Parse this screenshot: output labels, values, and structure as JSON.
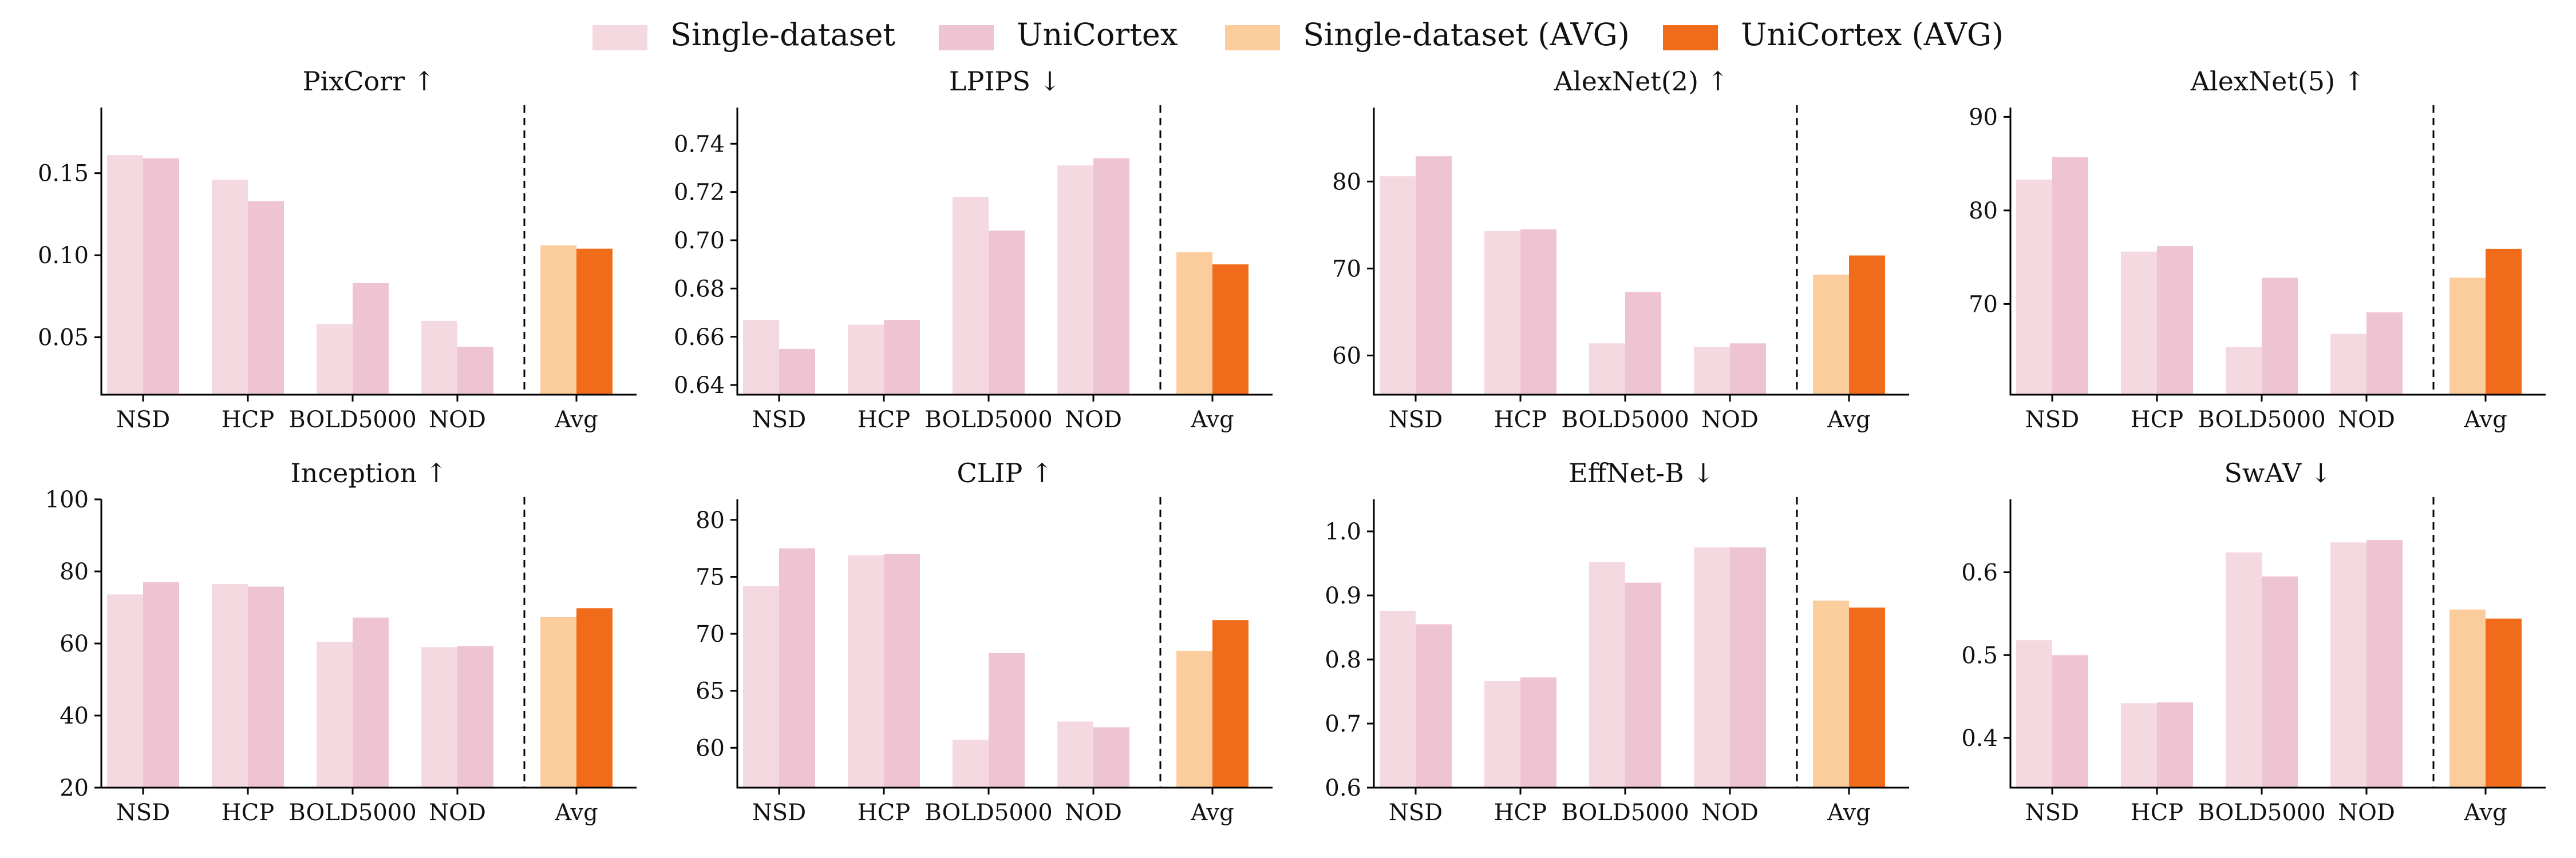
{
  "legend": {
    "items": [
      {
        "label": "Single-dataset",
        "color": "#f5d9e0"
      },
      {
        "label": "UniCortex",
        "color": "#efc4d2"
      },
      {
        "label": "Single-dataset (AVG)",
        "color": "#fbcd9c"
      },
      {
        "label": "UniCortex (AVG)",
        "color": "#f06c1b"
      }
    ]
  },
  "chart_data": [
    {
      "type": "bar",
      "title": "PixCorr ↑",
      "categories": [
        "NSD",
        "HCP",
        "BOLD5000",
        "NOD",
        "Avg"
      ],
      "series": [
        {
          "name": "Single-dataset",
          "values": [
            0.161,
            0.146,
            0.058,
            0.06,
            null
          ]
        },
        {
          "name": "UniCortex",
          "values": [
            0.159,
            0.133,
            0.083,
            0.044,
            null
          ]
        },
        {
          "name": "Single-dataset (AVG)",
          "values": [
            null,
            null,
            null,
            null,
            0.106
          ]
        },
        {
          "name": "UniCortex (AVG)",
          "values": [
            null,
            null,
            null,
            null,
            0.104
          ]
        }
      ],
      "ylim": [
        0.015,
        0.19
      ],
      "yticks": [
        0.05,
        0.1,
        0.15
      ],
      "ytick_labels": [
        "0.05",
        "0.10",
        "0.15"
      ]
    },
    {
      "type": "bar",
      "title": "LPIPS ↓",
      "categories": [
        "NSD",
        "HCP",
        "BOLD5000",
        "NOD",
        "Avg"
      ],
      "series": [
        {
          "name": "Single-dataset",
          "values": [
            0.667,
            0.665,
            0.718,
            0.731,
            null
          ]
        },
        {
          "name": "UniCortex",
          "values": [
            0.655,
            0.667,
            0.704,
            0.734,
            null
          ]
        },
        {
          "name": "Single-dataset (AVG)",
          "values": [
            null,
            null,
            null,
            null,
            0.695
          ]
        },
        {
          "name": "UniCortex (AVG)",
          "values": [
            null,
            null,
            null,
            null,
            0.69
          ]
        }
      ],
      "ylim": [
        0.636,
        0.755
      ],
      "yticks": [
        0.64,
        0.66,
        0.68,
        0.7,
        0.72,
        0.74
      ],
      "ytick_labels": [
        "0.64",
        "0.66",
        "0.68",
        "0.70",
        "0.72",
        "0.74"
      ]
    },
    {
      "type": "bar",
      "title": "AlexNet(2) ↑",
      "categories": [
        "NSD",
        "HCP",
        "BOLD5000",
        "NOD",
        "Avg"
      ],
      "series": [
        {
          "name": "Single-dataset",
          "values": [
            80.6,
            74.3,
            61.4,
            61.0,
            null
          ]
        },
        {
          "name": "UniCortex",
          "values": [
            82.9,
            74.5,
            67.3,
            61.4,
            null
          ]
        },
        {
          "name": "Single-dataset (AVG)",
          "values": [
            null,
            null,
            null,
            null,
            69.3
          ]
        },
        {
          "name": "UniCortex (AVG)",
          "values": [
            null,
            null,
            null,
            null,
            71.5
          ]
        }
      ],
      "ylim": [
        55.5,
        88.5
      ],
      "yticks": [
        60,
        70,
        80
      ],
      "ytick_labels": [
        "60",
        "70",
        "80"
      ]
    },
    {
      "type": "bar",
      "title": "AlexNet(5) ↑",
      "categories": [
        "NSD",
        "HCP",
        "BOLD5000",
        "NOD",
        "Avg"
      ],
      "series": [
        {
          "name": "Single-dataset",
          "values": [
            83.3,
            75.6,
            65.4,
            66.8,
            null
          ]
        },
        {
          "name": "UniCortex",
          "values": [
            85.7,
            76.2,
            72.8,
            69.1,
            null
          ]
        },
        {
          "name": "Single-dataset (AVG)",
          "values": [
            null,
            null,
            null,
            null,
            72.8
          ]
        },
        {
          "name": "UniCortex (AVG)",
          "values": [
            null,
            null,
            null,
            null,
            75.9
          ]
        }
      ],
      "ylim": [
        60.3,
        91.0
      ],
      "yticks": [
        70,
        80,
        90
      ],
      "ytick_labels": [
        "70",
        "80",
        "90"
      ]
    },
    {
      "type": "bar",
      "title": "Inception ↑",
      "categories": [
        "NSD",
        "HCP",
        "BOLD5000",
        "NOD",
        "Avg"
      ],
      "series": [
        {
          "name": "Single-dataset",
          "values": [
            73.6,
            76.5,
            60.5,
            59.0,
            null
          ]
        },
        {
          "name": "UniCortex",
          "values": [
            77.0,
            75.8,
            67.2,
            59.3,
            null
          ]
        },
        {
          "name": "Single-dataset (AVG)",
          "values": [
            null,
            null,
            null,
            null,
            67.3
          ]
        },
        {
          "name": "UniCortex (AVG)",
          "values": [
            null,
            null,
            null,
            null,
            69.8
          ]
        }
      ],
      "ylim": [
        20,
        100
      ],
      "yticks": [
        20,
        40,
        60,
        80,
        100
      ],
      "ytick_labels": [
        "20",
        "40",
        "60",
        "80",
        "100"
      ]
    },
    {
      "type": "bar",
      "title": "CLIP ↑",
      "categories": [
        "NSD",
        "HCP",
        "BOLD5000",
        "NOD",
        "Avg"
      ],
      "series": [
        {
          "name": "Single-dataset",
          "values": [
            74.2,
            76.9,
            60.7,
            62.3,
            null
          ]
        },
        {
          "name": "UniCortex",
          "values": [
            77.5,
            77.0,
            68.3,
            61.8,
            null
          ]
        },
        {
          "name": "Single-dataset (AVG)",
          "values": [
            null,
            null,
            null,
            null,
            68.5
          ]
        },
        {
          "name": "UniCortex (AVG)",
          "values": [
            null,
            null,
            null,
            null,
            71.2
          ]
        }
      ],
      "ylim": [
        56.5,
        81.8
      ],
      "yticks": [
        60,
        65,
        70,
        75,
        80
      ],
      "ytick_labels": [
        "60",
        "65",
        "70",
        "75",
        "80"
      ]
    },
    {
      "type": "bar",
      "title": "EffNet-B ↓",
      "categories": [
        "NSD",
        "HCP",
        "BOLD5000",
        "NOD",
        "Avg"
      ],
      "series": [
        {
          "name": "Single-dataset",
          "values": [
            0.876,
            0.766,
            0.952,
            0.975,
            null
          ]
        },
        {
          "name": "UniCortex",
          "values": [
            0.855,
            0.772,
            0.92,
            0.975,
            null
          ]
        },
        {
          "name": "Single-dataset (AVG)",
          "values": [
            null,
            null,
            null,
            null,
            0.892
          ]
        },
        {
          "name": "UniCortex (AVG)",
          "values": [
            null,
            null,
            null,
            null,
            0.881
          ]
        }
      ],
      "ylim": [
        0.6,
        1.05
      ],
      "yticks": [
        0.6,
        0.7,
        0.8,
        0.9,
        1.0
      ],
      "ytick_labels": [
        "0.6",
        "0.7",
        "0.8",
        "0.9",
        "1.0"
      ]
    },
    {
      "type": "bar",
      "title": "SwAV ↓",
      "categories": [
        "NSD",
        "HCP",
        "BOLD5000",
        "NOD",
        "Avg"
      ],
      "series": [
        {
          "name": "Single-dataset",
          "values": [
            0.518,
            0.442,
            0.624,
            0.636,
            null
          ]
        },
        {
          "name": "UniCortex",
          "values": [
            0.5,
            0.443,
            0.595,
            0.639,
            null
          ]
        },
        {
          "name": "Single-dataset (AVG)",
          "values": [
            null,
            null,
            null,
            null,
            0.555
          ]
        },
        {
          "name": "UniCortex (AVG)",
          "values": [
            null,
            null,
            null,
            null,
            0.544
          ]
        }
      ],
      "ylim": [
        0.34,
        0.688
      ],
      "yticks": [
        0.4,
        0.5,
        0.6
      ],
      "ytick_labels": [
        "0.4",
        "0.5",
        "0.6"
      ]
    }
  ]
}
